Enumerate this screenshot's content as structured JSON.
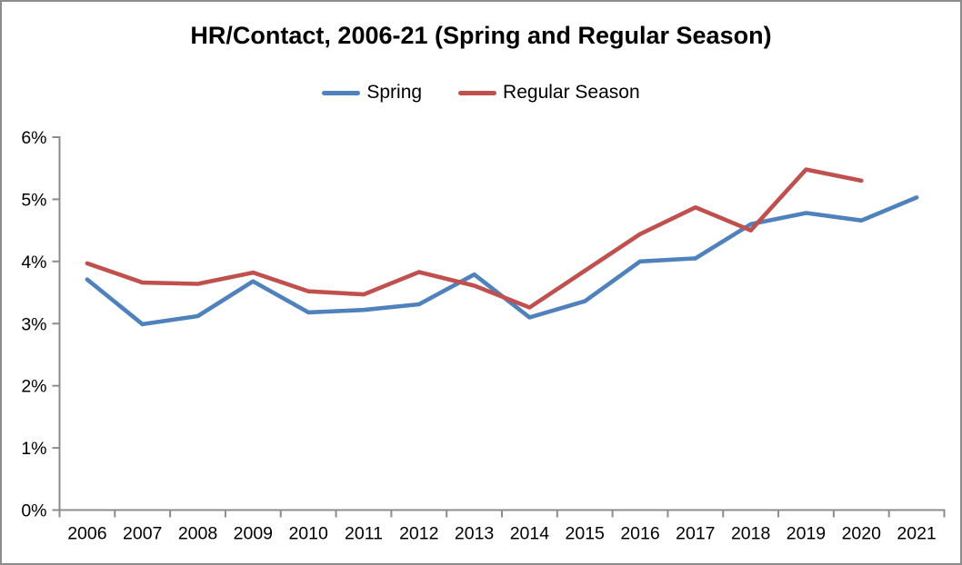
{
  "chart_data": {
    "type": "line",
    "title": "HR/Contact, 2006-21 (Spring and Regular Season)",
    "categories": [
      "2006",
      "2007",
      "2008",
      "2009",
      "2010",
      "2011",
      "2012",
      "2013",
      "2014",
      "2015",
      "2016",
      "2017",
      "2018",
      "2019",
      "2020",
      "2021"
    ],
    "series": [
      {
        "name": "Spring",
        "color": "#4F81BD",
        "values": [
          3.71,
          2.99,
          3.12,
          3.68,
          3.18,
          3.22,
          3.31,
          3.79,
          3.1,
          3.36,
          4.0,
          4.05,
          4.6,
          4.78,
          4.66,
          5.03
        ]
      },
      {
        "name": "Regular Season",
        "color": "#C0504D",
        "values": [
          3.97,
          3.66,
          3.64,
          3.82,
          3.52,
          3.47,
          3.83,
          3.61,
          3.26,
          3.85,
          4.44,
          4.87,
          4.5,
          5.48,
          5.3,
          null
        ]
      }
    ],
    "xlabel": "",
    "ylabel": "",
    "y_axis": {
      "min": 0,
      "max": 6,
      "step": 1,
      "tick_labels": [
        "0%",
        "1%",
        "2%",
        "3%",
        "4%",
        "5%",
        "6%"
      ]
    },
    "grid": false,
    "legend_position": "top",
    "axis_color": "#8C8C8C",
    "text_color": "#000000"
  }
}
